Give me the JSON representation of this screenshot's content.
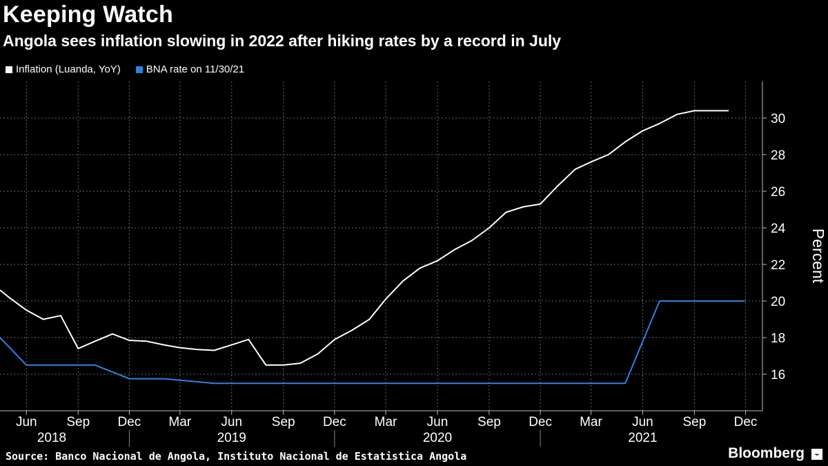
{
  "title": "Keeping Watch",
  "subtitle": "Angola sees inflation slowing in 2022 after hiking rates by a record in July",
  "source": "Source: Banco Nacional de Angola, Instituto Nacional de Estatistica Angola",
  "brand": "Bloomberg",
  "brand_icon": "bloomberg-logo-icon",
  "chart_data": {
    "type": "line",
    "ylabel": "Percent",
    "ylim": [
      14,
      32
    ],
    "yticks": [
      16,
      18,
      20,
      22,
      24,
      26,
      28,
      30
    ],
    "xlim": [
      "2018-04-15",
      "2021-12-31"
    ],
    "grid": true,
    "legend_position": "top-left",
    "x_month_ticks": [
      {
        "date": "2018-06-01",
        "label": "Jun"
      },
      {
        "date": "2018-09-01",
        "label": "Sep"
      },
      {
        "date": "2018-12-01",
        "label": "Dec"
      },
      {
        "date": "2019-03-01",
        "label": "Mar"
      },
      {
        "date": "2019-06-01",
        "label": "Jun"
      },
      {
        "date": "2019-09-01",
        "label": "Sep"
      },
      {
        "date": "2019-12-01",
        "label": "Dec"
      },
      {
        "date": "2020-03-01",
        "label": "Mar"
      },
      {
        "date": "2020-06-01",
        "label": "Jun"
      },
      {
        "date": "2020-09-01",
        "label": "Sep"
      },
      {
        "date": "2020-12-01",
        "label": "Dec"
      },
      {
        "date": "2021-03-01",
        "label": "Mar"
      },
      {
        "date": "2021-06-01",
        "label": "Jun"
      },
      {
        "date": "2021-09-01",
        "label": "Sep"
      },
      {
        "date": "2021-12-01",
        "label": "Dec"
      }
    ],
    "x_year_labels": [
      {
        "date": "2018-07-16",
        "label": "2018"
      },
      {
        "date": "2019-06-01",
        "label": "2019"
      },
      {
        "date": "2020-06-01",
        "label": "2020"
      },
      {
        "date": "2021-06-01",
        "label": "2021"
      }
    ],
    "x_year_dividers": [
      "2018-12-01",
      "2019-12-01",
      "2020-12-01"
    ],
    "series": [
      {
        "name": "Inflation (Luanda, YoY)",
        "color": "#ffffff",
        "points": [
          [
            "2018-04-15",
            20.6
          ],
          [
            "2018-05-01",
            20.2
          ],
          [
            "2018-06-01",
            19.5
          ],
          [
            "2018-07-01",
            19.0
          ],
          [
            "2018-08-01",
            19.2
          ],
          [
            "2018-09-01",
            17.4
          ],
          [
            "2018-10-01",
            17.8
          ],
          [
            "2018-11-01",
            18.2
          ],
          [
            "2018-12-01",
            17.85
          ],
          [
            "2019-01-01",
            17.8
          ],
          [
            "2019-02-01",
            17.6
          ],
          [
            "2019-03-01",
            17.45
          ],
          [
            "2019-04-01",
            17.35
          ],
          [
            "2019-05-01",
            17.3
          ],
          [
            "2019-06-01",
            17.6
          ],
          [
            "2019-07-01",
            17.9
          ],
          [
            "2019-08-01",
            16.5
          ],
          [
            "2019-09-01",
            16.5
          ],
          [
            "2019-10-01",
            16.6
          ],
          [
            "2019-11-01",
            17.1
          ],
          [
            "2019-12-01",
            17.9
          ],
          [
            "2020-01-01",
            18.4
          ],
          [
            "2020-02-01",
            19.0
          ],
          [
            "2020-03-01",
            20.1
          ],
          [
            "2020-04-01",
            21.1
          ],
          [
            "2020-05-01",
            21.8
          ],
          [
            "2020-06-01",
            22.2
          ],
          [
            "2020-07-01",
            22.8
          ],
          [
            "2020-08-01",
            23.3
          ],
          [
            "2020-09-01",
            24.0
          ],
          [
            "2020-10-01",
            24.85
          ],
          [
            "2020-11-01",
            25.15
          ],
          [
            "2020-12-01",
            25.3
          ],
          [
            "2021-01-01",
            26.3
          ],
          [
            "2021-02-01",
            27.2
          ],
          [
            "2021-03-01",
            27.6
          ],
          [
            "2021-04-01",
            28.0
          ],
          [
            "2021-05-01",
            28.7
          ],
          [
            "2021-06-01",
            29.3
          ],
          [
            "2021-07-01",
            29.7
          ],
          [
            "2021-08-01",
            30.2
          ],
          [
            "2021-09-01",
            30.4
          ],
          [
            "2021-10-01",
            30.4
          ],
          [
            "2021-11-01",
            30.4
          ]
        ]
      },
      {
        "name": "BNA rate on 11/30/21",
        "color": "#2b83e3",
        "points": [
          [
            "2018-04-15",
            18.0
          ],
          [
            "2018-06-01",
            16.5
          ],
          [
            "2018-10-01",
            16.5
          ],
          [
            "2018-12-01",
            15.75
          ],
          [
            "2019-02-01",
            15.75
          ],
          [
            "2019-05-01",
            15.5
          ],
          [
            "2021-05-01",
            15.5
          ],
          [
            "2021-07-01",
            20.0
          ],
          [
            "2021-11-30",
            20.0
          ]
        ]
      }
    ]
  }
}
